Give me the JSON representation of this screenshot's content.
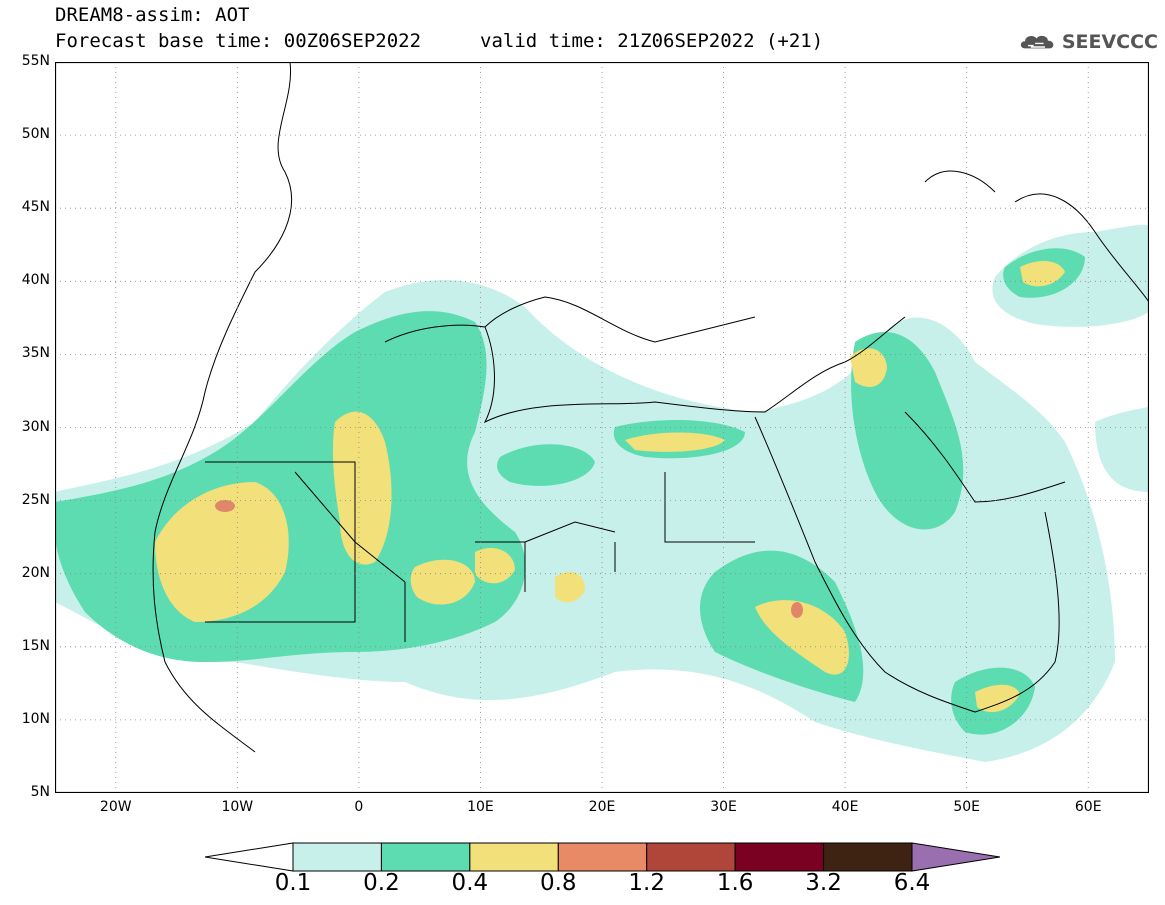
{
  "header": {
    "title": "DREAM8-assim: AOT",
    "base_time": "Forecast base time: 00Z06SEP2022",
    "valid_time": "valid time: 21Z06SEP2022 (+21)",
    "logo_text": "SEEVCCC"
  },
  "map": {
    "lat_labels": [
      "55N",
      "50N",
      "45N",
      "40N",
      "35N",
      "30N",
      "25N",
      "20N",
      "15N",
      "10N",
      "5N"
    ],
    "lon_labels": [
      "20W",
      "10W",
      "0",
      "10E",
      "20E",
      "30E",
      "40E",
      "50E",
      "60E"
    ],
    "lat_range": [
      5,
      55
    ],
    "lon_range": [
      -25,
      65
    ],
    "colors": {
      "c1": "#c8f0ea",
      "c2": "#5cdcb0",
      "c3": "#f2e07a",
      "c4": "#e0876a",
      "c5": "#b0453a",
      "c6": "#7a0021",
      "c7": "#3e2312",
      "c8": "#9a6fb0",
      "border": "#000000"
    }
  },
  "colorbar": {
    "labels": [
      "0.1",
      "0.2",
      "0.4",
      "0.8",
      "1.2",
      "1.6",
      "3.2",
      "6.4"
    ],
    "colors": [
      "#ffffff",
      "#c8f0ea",
      "#5cdcb0",
      "#f2e07a",
      "#e88a66",
      "#b0453a",
      "#7a0021",
      "#3e2312",
      "#9a6fb0"
    ]
  }
}
